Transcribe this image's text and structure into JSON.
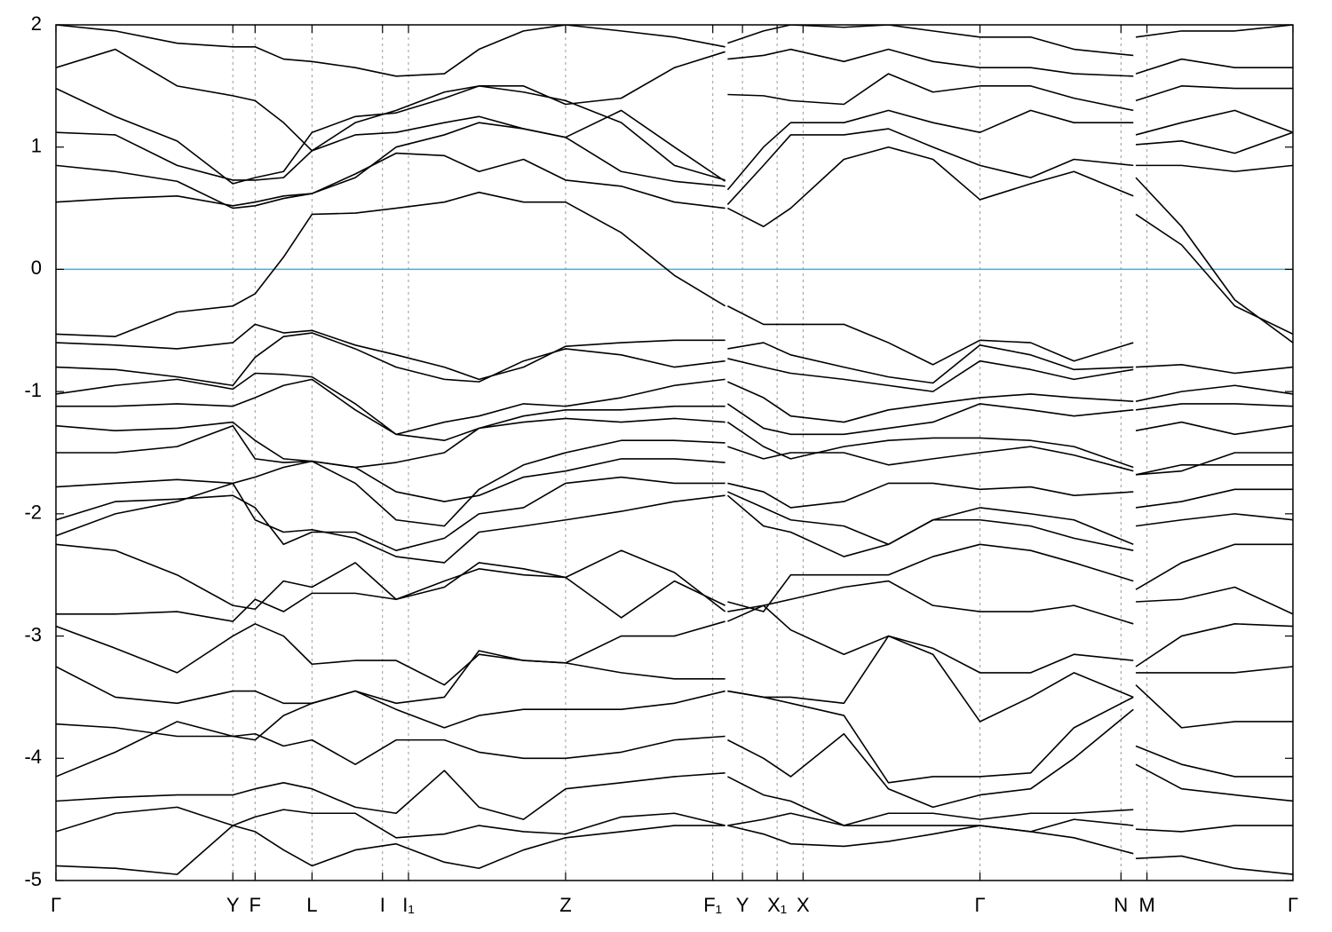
{
  "chart_data": {
    "type": "line",
    "color": "#000000",
    "fermi_level": 0,
    "fermi_color": "#5aa6c4",
    "grid": true,
    "x": [
      0,
      0.048,
      0.098,
      0.143,
      0.161,
      0.184,
      0.207,
      0.242,
      0.275,
      0.314,
      0.342,
      0.378,
      0.412,
      0.457,
      0.5,
      0.541,
      0.542,
      0.543,
      0.572,
      0.594,
      0.637,
      0.673,
      0.709,
      0.747,
      0.788,
      0.823,
      0.871,
      0.872,
      0.873,
      0.91,
      0.953,
      1
    ],
    "xlim": [
      0,
      1
    ],
    "ylim": [
      -5,
      2
    ],
    "yticks": [
      -5,
      -4,
      -3,
      -2,
      -1,
      0,
      1,
      2
    ],
    "xticks": [
      {
        "value": 0,
        "label": "Γ"
      },
      {
        "value": 0.143,
        "label": "Y"
      },
      {
        "value": 0.161,
        "label": "F"
      },
      {
        "value": 0.207,
        "label": "L"
      },
      {
        "value": 0.264,
        "label": "I"
      },
      {
        "value": 0.285,
        "label": "I₁"
      },
      {
        "value": 0.412,
        "label": "Z"
      },
      {
        "value": 0.531,
        "label": "F₁"
      },
      {
        "value": 0.555,
        "label": "Y"
      },
      {
        "value": 0.583,
        "label": "X₁"
      },
      {
        "value": 0.604,
        "label": "X"
      },
      {
        "value": 0.747,
        "label": "Γ"
      },
      {
        "value": 0.861,
        "label": "N"
      },
      {
        "value": 0.882,
        "label": "M"
      },
      {
        "value": 1,
        "label": "Γ"
      }
    ],
    "series": [
      {
        "values": [
          -0.53,
          -0.55,
          -0.35,
          -0.3,
          -0.2,
          0.1,
          0.45,
          0.46,
          0.5,
          0.55,
          0.63,
          0.55,
          0.55,
          0.3,
          -0.05,
          -0.3,
          null,
          -0.3,
          -0.45,
          -0.45,
          -0.45,
          -0.6,
          -0.78,
          -0.58,
          -0.6,
          -0.75,
          -0.6,
          null,
          0.45,
          0.2,
          -0.3,
          -0.53
        ]
      },
      {
        "values": [
          -0.6,
          -0.62,
          -0.65,
          -0.6,
          -0.45,
          -0.52,
          -0.5,
          -0.62,
          -0.7,
          -0.8,
          -0.9,
          -0.8,
          -0.63,
          -0.6,
          -0.58,
          -0.58,
          null,
          -0.65,
          -0.6,
          -0.7,
          -0.8,
          -0.88,
          -0.93,
          -0.62,
          -0.7,
          -0.82,
          -0.8,
          null,
          0.75,
          0.35,
          -0.25,
          -0.6
        ]
      },
      {
        "values": [
          0.55,
          0.58,
          0.6,
          0.52,
          0.55,
          0.6,
          0.62,
          0.78,
          0.95,
          0.93,
          0.8,
          0.9,
          0.73,
          0.68,
          0.55,
          0.5,
          null,
          0.5,
          0.35,
          0.5,
          0.9,
          1.0,
          0.9,
          0.57,
          0.7,
          0.8,
          0.6,
          null,
          0.85,
          0.85,
          0.8,
          0.85
        ]
      },
      {
        "values": [
          0.85,
          0.8,
          0.72,
          0.5,
          0.52,
          0.58,
          0.62,
          0.75,
          1.0,
          1.1,
          1.2,
          1.15,
          1.08,
          0.8,
          0.72,
          0.68,
          null,
          0.53,
          0.85,
          1.1,
          1.1,
          1.15,
          1.0,
          0.85,
          0.75,
          0.9,
          0.85,
          null,
          1.02,
          1.05,
          0.95,
          1.12
        ]
      },
      {
        "values": [
          1.12,
          1.1,
          0.85,
          0.73,
          0.73,
          0.75,
          0.97,
          1.1,
          1.12,
          1.2,
          1.25,
          1.15,
          1.08,
          1.3,
          1.0,
          0.72,
          null,
          0.65,
          1.0,
          1.2,
          1.2,
          1.3,
          1.2,
          1.12,
          1.3,
          1.2,
          1.2,
          null,
          1.1,
          1.2,
          1.3,
          1.12
        ]
      },
      {
        "values": [
          1.48,
          1.25,
          1.05,
          0.7,
          0.75,
          0.8,
          1.12,
          1.25,
          1.28,
          1.4,
          1.5,
          1.45,
          1.38,
          1.2,
          0.85,
          0.73,
          null,
          1.43,
          1.42,
          1.38,
          1.35,
          1.6,
          1.45,
          1.5,
          1.5,
          1.4,
          1.3,
          null,
          1.38,
          1.5,
          1.48,
          1.48
        ]
      },
      {
        "values": [
          1.65,
          1.8,
          1.5,
          1.42,
          1.38,
          1.2,
          0.97,
          1.2,
          1.3,
          1.45,
          1.5,
          1.5,
          1.35,
          1.4,
          1.65,
          1.78,
          null,
          1.72,
          1.75,
          1.8,
          1.7,
          1.8,
          1.7,
          1.65,
          1.65,
          1.6,
          1.58,
          null,
          1.6,
          1.72,
          1.65,
          1.65
        ]
      },
      {
        "values": [
          2.0,
          1.95,
          1.85,
          1.82,
          1.82,
          1.72,
          1.7,
          1.65,
          1.58,
          1.6,
          1.8,
          1.95,
          2.0,
          1.95,
          1.9,
          1.82,
          null,
          1.85,
          1.95,
          2.0,
          1.98,
          2.0,
          1.95,
          1.9,
          1.9,
          1.8,
          1.75,
          null,
          1.9,
          1.95,
          1.95,
          2.0
        ]
      },
      {
        "values": [
          -0.8,
          -0.82,
          -0.88,
          -0.95,
          -0.72,
          -0.55,
          -0.52,
          -0.65,
          -0.8,
          -0.9,
          -0.92,
          -0.75,
          -0.65,
          -0.7,
          -0.8,
          -0.75,
          null,
          -0.73,
          -0.8,
          -0.85,
          -0.9,
          -0.95,
          -1.0,
          -0.75,
          -0.82,
          -0.9,
          -0.82,
          null,
          -0.8,
          -0.78,
          -0.85,
          -0.8
        ]
      },
      {
        "values": [
          -1.02,
          -0.95,
          -0.9,
          -0.98,
          -0.85,
          -0.86,
          -0.88,
          -1.1,
          -1.35,
          -1.25,
          -1.2,
          -1.1,
          -1.12,
          -1.05,
          -0.95,
          -0.9,
          null,
          -0.92,
          -1.05,
          -1.2,
          -1.25,
          -1.15,
          -1.1,
          -1.05,
          -1.02,
          -1.05,
          -1.08,
          null,
          -1.08,
          -1.0,
          -0.95,
          -1.02
        ]
      },
      {
        "values": [
          -1.12,
          -1.12,
          -1.1,
          -1.12,
          -1.05,
          -0.95,
          -0.9,
          -1.15,
          -1.35,
          -1.4,
          -1.3,
          -1.2,
          -1.15,
          -1.15,
          -1.12,
          -1.12,
          null,
          -1.1,
          -1.3,
          -1.35,
          -1.35,
          -1.3,
          -1.25,
          -1.1,
          -1.15,
          -1.2,
          -1.15,
          null,
          -1.15,
          -1.1,
          -1.1,
          -1.12
        ]
      },
      {
        "values": [
          -1.28,
          -1.32,
          -1.3,
          -1.25,
          -1.4,
          -1.55,
          -1.57,
          -1.62,
          -1.58,
          -1.5,
          -1.3,
          -1.25,
          -1.22,
          -1.25,
          -1.22,
          -1.25,
          null,
          -1.25,
          -1.45,
          -1.55,
          -1.45,
          -1.4,
          -1.38,
          -1.38,
          -1.4,
          -1.45,
          -1.62,
          null,
          -1.32,
          -1.25,
          -1.35,
          -1.28
        ]
      },
      {
        "values": [
          -1.5,
          -1.5,
          -1.45,
          -1.28,
          -1.55,
          -1.58,
          -1.57,
          -1.75,
          -2.05,
          -2.1,
          -1.8,
          -1.6,
          -1.5,
          -1.4,
          -1.4,
          -1.42,
          null,
          -1.45,
          -1.55,
          -1.5,
          -1.5,
          -1.6,
          -1.55,
          -1.5,
          -1.45,
          -1.52,
          -1.65,
          null,
          -1.68,
          -1.65,
          -1.5,
          -1.5
        ]
      },
      {
        "values": [
          -1.78,
          -1.75,
          -1.72,
          -1.75,
          -1.7,
          -1.62,
          -1.57,
          -1.62,
          -1.82,
          -1.9,
          -1.85,
          -1.7,
          -1.65,
          -1.55,
          -1.55,
          -1.58,
          null,
          -1.75,
          -1.82,
          -1.95,
          -1.9,
          -1.75,
          -1.75,
          -1.8,
          -1.78,
          -1.85,
          -1.82,
          null,
          -1.68,
          -1.6,
          -1.6,
          -1.6
        ]
      },
      {
        "values": [
          -2.05,
          -1.9,
          -1.88,
          -1.85,
          -1.95,
          -2.25,
          -2.15,
          -2.15,
          -2.3,
          -2.2,
          -2.0,
          -1.95,
          -1.75,
          -1.7,
          -1.75,
          -1.75,
          null,
          -1.82,
          -1.95,
          -2.05,
          -2.1,
          -2.25,
          -2.05,
          -1.95,
          -2.0,
          -2.05,
          -2.25,
          null,
          -1.95,
          -1.9,
          -1.8,
          -1.8
        ]
      },
      {
        "values": [
          -2.18,
          -2.0,
          -1.9,
          -1.75,
          -2.05,
          -2.15,
          -2.13,
          -2.2,
          -2.35,
          -2.4,
          -2.15,
          -2.1,
          -2.05,
          -1.98,
          -1.9,
          -1.85,
          null,
          -1.85,
          -2.1,
          -2.15,
          -2.35,
          -2.25,
          -2.05,
          -2.05,
          -2.1,
          -2.2,
          -2.3,
          null,
          -2.1,
          -2.05,
          -2.0,
          -2.05
        ]
      },
      {
        "values": [
          -2.25,
          -2.3,
          -2.5,
          -2.75,
          -2.78,
          -2.55,
          -2.6,
          -2.4,
          -2.7,
          -2.6,
          -2.4,
          -2.45,
          -2.52,
          -2.85,
          -2.55,
          -2.75,
          null,
          -2.72,
          -2.8,
          -2.5,
          -2.5,
          -2.5,
          -2.35,
          -2.25,
          -2.3,
          -2.4,
          -2.55,
          null,
          -2.62,
          -2.4,
          -2.25,
          -2.25
        ]
      },
      {
        "values": [
          -2.82,
          -2.82,
          -2.8,
          -2.88,
          -2.7,
          -2.8,
          -2.65,
          -2.65,
          -2.7,
          -2.55,
          -2.45,
          -2.5,
          -2.52,
          -2.3,
          -2.48,
          -2.8,
          null,
          -2.8,
          -2.75,
          -2.7,
          -2.6,
          -2.55,
          -2.75,
          -2.8,
          -2.8,
          -2.75,
          -2.9,
          null,
          -2.72,
          -2.7,
          -2.6,
          -2.82
        ]
      },
      {
        "values": [
          -2.92,
          -3.1,
          -3.3,
          -3.0,
          -2.9,
          -3.0,
          -3.23,
          -3.2,
          -3.2,
          -3.4,
          -3.15,
          -3.2,
          -3.22,
          -3.0,
          -3.0,
          -2.88,
          null,
          -2.88,
          -2.75,
          -2.95,
          -3.15,
          -3.0,
          -3.1,
          -3.3,
          -3.3,
          -3.15,
          -3.2,
          null,
          -3.25,
          -3.0,
          -2.9,
          -2.92
        ]
      },
      {
        "values": [
          -3.25,
          -3.5,
          -3.55,
          -3.45,
          -3.45,
          -3.55,
          -3.55,
          -3.45,
          -3.55,
          -3.5,
          -3.12,
          -3.2,
          -3.22,
          -3.3,
          -3.35,
          -3.35,
          null,
          -3.45,
          -3.5,
          -3.5,
          -3.55,
          -3.0,
          -3.15,
          -3.7,
          -3.5,
          -3.3,
          -3.5,
          null,
          -3.3,
          -3.3,
          -3.3,
          -3.25
        ]
      },
      {
        "values": [
          -3.72,
          -3.75,
          -3.82,
          -3.82,
          -3.85,
          -3.65,
          -3.55,
          -3.45,
          -3.6,
          -3.75,
          -3.65,
          -3.6,
          -3.6,
          -3.6,
          -3.55,
          -3.45,
          null,
          -3.45,
          -3.5,
          -3.55,
          -3.65,
          -4.2,
          -4.15,
          -4.15,
          -4.12,
          -3.75,
          -3.5,
          null,
          -3.4,
          -3.75,
          -3.7,
          -3.7
        ]
      },
      {
        "values": [
          -4.15,
          -3.95,
          -3.7,
          -3.82,
          -3.8,
          -3.9,
          -3.85,
          -4.05,
          -3.85,
          -3.85,
          -3.95,
          -4.0,
          -4.0,
          -3.95,
          -3.85,
          -3.82,
          null,
          -3.85,
          -4.0,
          -4.15,
          -3.8,
          -4.25,
          -4.4,
          -4.3,
          -4.25,
          -4.0,
          -3.6,
          null,
          -3.9,
          -4.05,
          -4.15,
          -4.15
        ]
      },
      {
        "values": [
          -4.35,
          -4.32,
          -4.3,
          -4.3,
          -4.25,
          -4.2,
          -4.25,
          -4.4,
          -4.45,
          -4.1,
          -4.4,
          -4.5,
          -4.25,
          -4.2,
          -4.15,
          -4.12,
          null,
          -4.15,
          -4.3,
          -4.35,
          -4.55,
          -4.45,
          -4.45,
          -4.5,
          -4.45,
          -4.45,
          -4.42,
          null,
          -4.05,
          -4.25,
          -4.3,
          -4.35
        ]
      },
      {
        "values": [
          -4.6,
          -4.45,
          -4.4,
          -4.55,
          -4.48,
          -4.42,
          -4.45,
          -4.45,
          -4.65,
          -4.62,
          -4.55,
          -4.6,
          -4.62,
          -4.48,
          -4.45,
          -4.55,
          null,
          -4.55,
          -4.5,
          -4.45,
          -4.55,
          -4.55,
          -4.55,
          -4.55,
          -4.6,
          -4.5,
          -4.55,
          null,
          -4.58,
          -4.6,
          -4.55,
          -4.55
        ]
      },
      {
        "values": [
          -4.88,
          -4.9,
          -4.95,
          -4.55,
          -4.6,
          -4.75,
          -4.88,
          -4.75,
          -4.7,
          -4.85,
          -4.9,
          -4.75,
          -4.65,
          -4.6,
          -4.55,
          -4.55,
          null,
          -4.55,
          -4.62,
          -4.7,
          -4.72,
          -4.68,
          -4.62,
          -4.55,
          -4.6,
          -4.65,
          -4.78,
          null,
          -4.82,
          -4.8,
          -4.9,
          -4.95
        ]
      }
    ]
  }
}
